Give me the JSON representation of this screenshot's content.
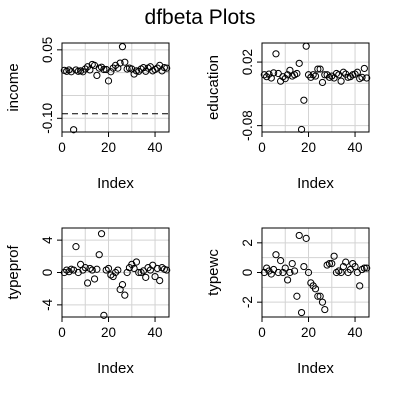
{
  "title": "dfbeta Plots",
  "chart_data": [
    {
      "type": "scatter",
      "xlabel": "Index",
      "ylabel": "income",
      "xlim": [
        0,
        46
      ],
      "ylim": [
        -0.13,
        0.065
      ],
      "xticks": [
        0,
        20,
        40
      ],
      "yticks": [
        -0.1,
        0.05
      ],
      "ytick_labels": [
        "-0.10",
        "0.05"
      ],
      "grid": true,
      "refline": {
        "y": -0.09,
        "style": "dashed"
      },
      "x": [
        1,
        2,
        3,
        4,
        5,
        6,
        7,
        8,
        9,
        10,
        11,
        12,
        13,
        14,
        15,
        16,
        17,
        18,
        19,
        20,
        21,
        22,
        23,
        24,
        25,
        26,
        27,
        28,
        29,
        30,
        31,
        32,
        33,
        34,
        35,
        36,
        37,
        38,
        39,
        40,
        41,
        42,
        43,
        44,
        45
      ],
      "y": [
        0.005,
        0.003,
        0.006,
        0.002,
        -0.125,
        0.006,
        0.003,
        0.004,
        0.002,
        0.008,
        0.013,
        0.006,
        0.018,
        0.016,
        -0.006,
        0.01,
        0.012,
        0.007,
        0.007,
        -0.018,
        0.002,
        0.01,
        0.016,
        0.01,
        0.021,
        0.057,
        0.023,
        0.008,
        0.01,
        0.008,
        -0.003,
        0.004,
        0.003,
        0.008,
        0.011,
        0.003,
        0.01,
        0.013,
        0.004,
        0.007,
        0.01,
        0.016,
        0.004,
        0.011,
        0.01
      ]
    },
    {
      "type": "scatter",
      "xlabel": "Index",
      "ylabel": "education",
      "xlim": [
        0,
        46
      ],
      "ylim": [
        -0.09,
        0.05
      ],
      "xticks": [
        0,
        20,
        40
      ],
      "yticks": [
        -0.08,
        0.02
      ],
      "ytick_labels": [
        "-0.08",
        "0.02"
      ],
      "grid": true,
      "x": [
        1,
        2,
        3,
        4,
        5,
        6,
        7,
        8,
        9,
        10,
        11,
        12,
        13,
        14,
        15,
        16,
        17,
        18,
        19,
        20,
        21,
        22,
        23,
        24,
        25,
        26,
        27,
        28,
        29,
        30,
        31,
        32,
        33,
        34,
        35,
        36,
        37,
        38,
        39,
        40,
        41,
        42,
        43,
        44,
        45
      ],
      "y": [
        0.0,
        -0.003,
        0.001,
        -0.005,
        0.003,
        0.033,
        0.002,
        -0.01,
        -0.003,
        -0.006,
        0.0,
        0.007,
        -0.002,
        0.0,
        0.002,
        0.018,
        -0.086,
        -0.04,
        0.045,
        0.0,
        -0.004,
        0.0,
        -0.002,
        0.009,
        0.009,
        -0.012,
        0.0,
        0.0,
        -0.004,
        -0.002,
        -0.005,
        0.002,
        0.0,
        -0.01,
        0.004,
        0.001,
        -0.004,
        -0.003,
        0.0,
        0.001,
        0.004,
        -0.006,
        -0.004,
        0.01,
        -0.005
      ]
    },
    {
      "type": "scatter",
      "xlabel": "Index",
      "ylabel": "typeprof",
      "xlim": [
        0,
        46
      ],
      "ylim": [
        -5.5,
        5.5
      ],
      "xticks": [
        0,
        20,
        40
      ],
      "yticks": [
        -4,
        0,
        4
      ],
      "ytick_labels": [
        "-4",
        "0",
        "4"
      ],
      "grid": true,
      "x": [
        1,
        2,
        3,
        4,
        5,
        6,
        7,
        8,
        9,
        10,
        11,
        12,
        13,
        14,
        15,
        16,
        17,
        18,
        19,
        20,
        21,
        22,
        23,
        24,
        25,
        26,
        27,
        28,
        29,
        30,
        31,
        32,
        33,
        34,
        35,
        36,
        37,
        38,
        39,
        40,
        41,
        42,
        43,
        44,
        45
      ],
      "y": [
        0.0,
        0.3,
        0.1,
        0.4,
        0.3,
        3.2,
        0.0,
        1.0,
        0.3,
        0.6,
        -1.3,
        0.5,
        0.3,
        -0.8,
        0.4,
        2.2,
        4.8,
        -5.3,
        0.3,
        0.5,
        -0.3,
        -0.5,
        0.0,
        0.3,
        -2.1,
        -1.5,
        -2.8,
        0.0,
        0.6,
        1.0,
        0.5,
        1.3,
        0.0,
        0.0,
        0.2,
        -0.6,
        0.6,
        0.3,
        0.9,
        -0.5,
        0.5,
        -1.0,
        0.6,
        0.4,
        0.3
      ]
    },
    {
      "type": "scatter",
      "xlabel": "Index",
      "ylabel": "typewc",
      "xlim": [
        0,
        46
      ],
      "ylim": [
        -3.0,
        3.0
      ],
      "xticks": [
        0,
        20,
        40
      ],
      "yticks": [
        -2,
        0,
        2
      ],
      "ytick_labels": [
        "-2",
        "0",
        "2"
      ],
      "grid": true,
      "x": [
        1,
        2,
        3,
        4,
        5,
        6,
        7,
        8,
        9,
        10,
        11,
        12,
        13,
        14,
        15,
        16,
        17,
        18,
        19,
        20,
        21,
        22,
        23,
        24,
        25,
        26,
        27,
        28,
        29,
        30,
        31,
        32,
        33,
        34,
        35,
        36,
        37,
        38,
        39,
        40,
        41,
        42,
        43,
        44,
        45
      ],
      "y": [
        0.0,
        0.3,
        0.1,
        -0.1,
        0.2,
        1.2,
        0.0,
        0.8,
        0.0,
        0.3,
        -0.5,
        0.0,
        0.6,
        0.1,
        -1.6,
        2.5,
        -2.7,
        0.4,
        2.3,
        0.0,
        -0.7,
        -0.9,
        -1.1,
        -1.6,
        -1.6,
        -2.0,
        -2.5,
        0.5,
        0.6,
        0.6,
        1.1,
        0.0,
        0.1,
        0.0,
        0.4,
        0.7,
        0.0,
        0.2,
        0.6,
        0.4,
        0.0,
        -0.9,
        0.2,
        0.3,
        0.3
      ]
    }
  ]
}
